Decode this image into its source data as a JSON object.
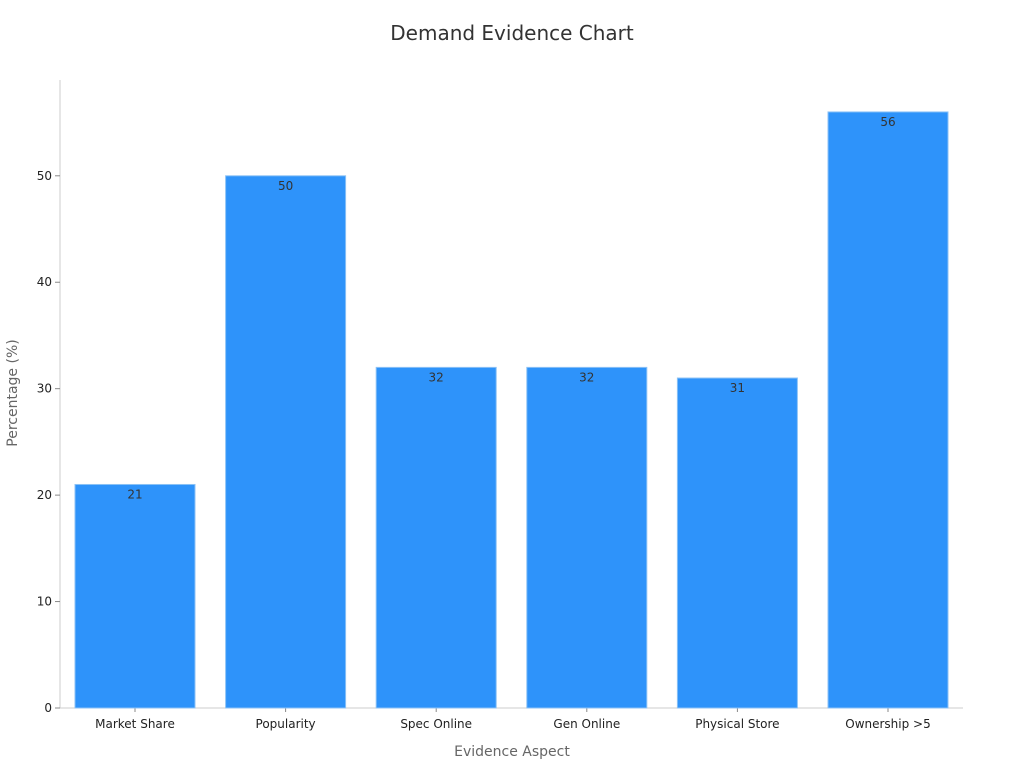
{
  "chart_data": {
    "type": "bar",
    "title": "Demand Evidence Chart",
    "xlabel": "Evidence Aspect",
    "ylabel": "Percentage (%)",
    "categories": [
      "Market Share",
      "Popularity",
      "Spec Online",
      "Gen Online",
      "Physical Store",
      "Ownership >5"
    ],
    "values": [
      21,
      50,
      32,
      32,
      31,
      56
    ],
    "ylim": [
      0,
      59
    ],
    "yticks": [
      0,
      10,
      20,
      30,
      40,
      50
    ],
    "grid": false,
    "show_data_labels": true,
    "colors": {
      "bar": "#2e93fa",
      "bar_edge": "#8cc2f5",
      "axis": "#cccccc",
      "title": "#333333",
      "axis_label": "#666666",
      "tick_label": "#222222",
      "data_label": "#333333"
    }
  }
}
